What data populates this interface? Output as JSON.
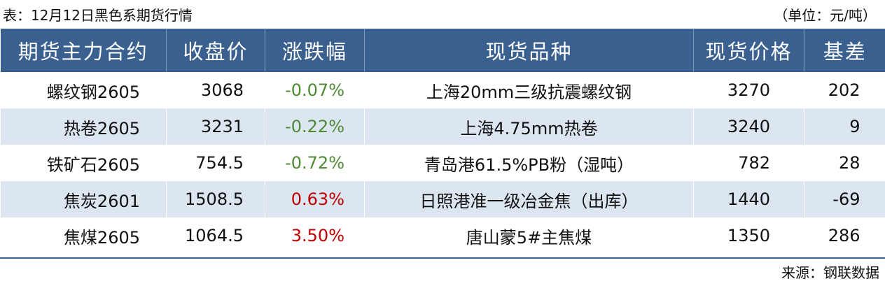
{
  "title": "表：12月12日黑色系期货行情",
  "unit": "（单位：元/吨）",
  "colors": {
    "header": "#3a6090",
    "stripe": "#dce6f1",
    "down": "#4f8a35",
    "up": "#c00000"
  },
  "headers": [
    "期货主力合约",
    "收盘价",
    "涨跌幅",
    "现货品种",
    "现货价格",
    "基差"
  ],
  "rows": [
    {
      "contract": "螺纹钢2605",
      "close": "3068",
      "change": "-0.07%",
      "dir": "neg",
      "spot": "上海20mm三级抗震螺纹钢",
      "spot_price": "3270",
      "basis": "202"
    },
    {
      "contract": "热卷2605",
      "close": "3231",
      "change": "-0.22%",
      "dir": "neg",
      "spot": "上海4.75mm热卷",
      "spot_price": "3240",
      "basis": "9"
    },
    {
      "contract": "铁矿石2605",
      "close": "754.5",
      "change": "-0.72%",
      "dir": "neg",
      "spot": "青岛港61.5%PB粉（湿吨）",
      "spot_price": "782",
      "basis": "28"
    },
    {
      "contract": "焦炭2601",
      "close": "1508.5",
      "change": "0.63%",
      "dir": "pos",
      "spot": "日照港准一级冶金焦（出库）",
      "spot_price": "1440",
      "basis": "-69"
    },
    {
      "contract": "焦煤2605",
      "close": "1064.5",
      "change": "3.50%",
      "dir": "pos",
      "spot": "唐山蒙5#主焦煤",
      "spot_price": "1350",
      "basis": "286"
    }
  ],
  "source": "来源：钢联数据"
}
